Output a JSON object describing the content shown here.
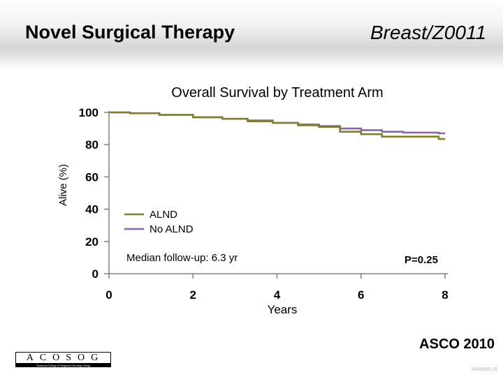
{
  "slide": {
    "title": "Novel Surgical Therapy",
    "subtitle": "Breast/Z0011",
    "conference": "ASCO 2010",
    "slide_id": "3049365-16"
  },
  "logo": {
    "letters": "ACOSOG",
    "strip_text": "American College of Surgeons Oncology Group"
  },
  "colors": {
    "alnd": "#7f7f26",
    "no_alnd": "#8e63a8",
    "axis": "#808080"
  },
  "chart_data": {
    "type": "line",
    "title": "Overall Survival by Treatment Arm",
    "xlabel": "Years",
    "ylabel": "Alive (%)",
    "xlim": [
      0,
      8
    ],
    "ylim": [
      0,
      100
    ],
    "xticks": [
      0,
      2,
      4,
      6,
      8
    ],
    "yticks": [
      0,
      20,
      40,
      60,
      80,
      100
    ],
    "grid": false,
    "legend_position": "center-left",
    "series": [
      {
        "name": "ALND",
        "x": [
          0,
          0.5,
          1.2,
          2.0,
          2.7,
          3.3,
          3.9,
          4.5,
          5.0,
          5.5,
          6.0,
          6.5,
          7.0,
          7.5,
          7.85,
          8.0
        ],
        "y": [
          100,
          99.5,
          98.5,
          97.0,
          96.0,
          94.5,
          93.5,
          92.0,
          91.0,
          88.0,
          86.5,
          85.0,
          85.0,
          85.0,
          83.5,
          83.5
        ]
      },
      {
        "name": "No ALND",
        "x": [
          0,
          0.5,
          1.2,
          2.0,
          2.7,
          3.3,
          3.9,
          4.5,
          5.0,
          5.5,
          6.0,
          6.5,
          7.0,
          7.5,
          7.85,
          8.0
        ],
        "y": [
          100,
          99.5,
          98.5,
          97.0,
          96.0,
          95.0,
          93.5,
          92.5,
          91.5,
          90.0,
          89.0,
          88.0,
          87.5,
          87.5,
          87.0,
          87.0
        ]
      }
    ],
    "annotations": [
      "Median follow-up:  6.3 yr",
      "P=0.25"
    ]
  }
}
